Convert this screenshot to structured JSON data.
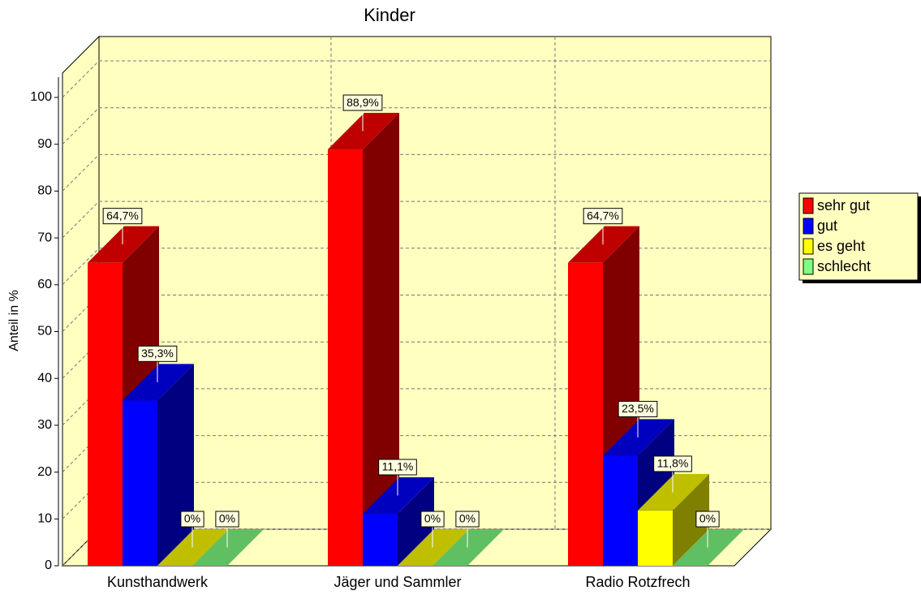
{
  "chart_data": {
    "type": "bar3d",
    "title": "Kinder",
    "y_label": "Anteil in %",
    "categories": [
      "Kunsthandwerk",
      "Jäger und Sammler",
      "Radio Rotzfrech"
    ],
    "series": [
      {
        "name": "sehr gut",
        "color": "#ff0000",
        "values": [
          64.7,
          88.9,
          64.7
        ],
        "value_labels": [
          "64,7%",
          "88,9%",
          "64,7%"
        ]
      },
      {
        "name": "gut",
        "color": "#0000ff",
        "values": [
          35.3,
          11.1,
          23.5
        ],
        "value_labels": [
          "35,3%",
          "11,1%",
          "23,5%"
        ]
      },
      {
        "name": "es geht",
        "color": "#ffff00",
        "values": [
          0,
          0,
          11.8
        ],
        "value_labels": [
          "0%",
          "0%",
          "11,8%"
        ]
      },
      {
        "name": "schlecht",
        "color": "#80ff80",
        "values": [
          0,
          0,
          0
        ],
        "value_labels": [
          "0%",
          "0%",
          "0%"
        ]
      }
    ],
    "ylim": [
      0,
      100
    ],
    "yticks": [
      0,
      10,
      20,
      30,
      40,
      50,
      60,
      70,
      80,
      90,
      100
    ],
    "grid": true,
    "legend": "right"
  }
}
